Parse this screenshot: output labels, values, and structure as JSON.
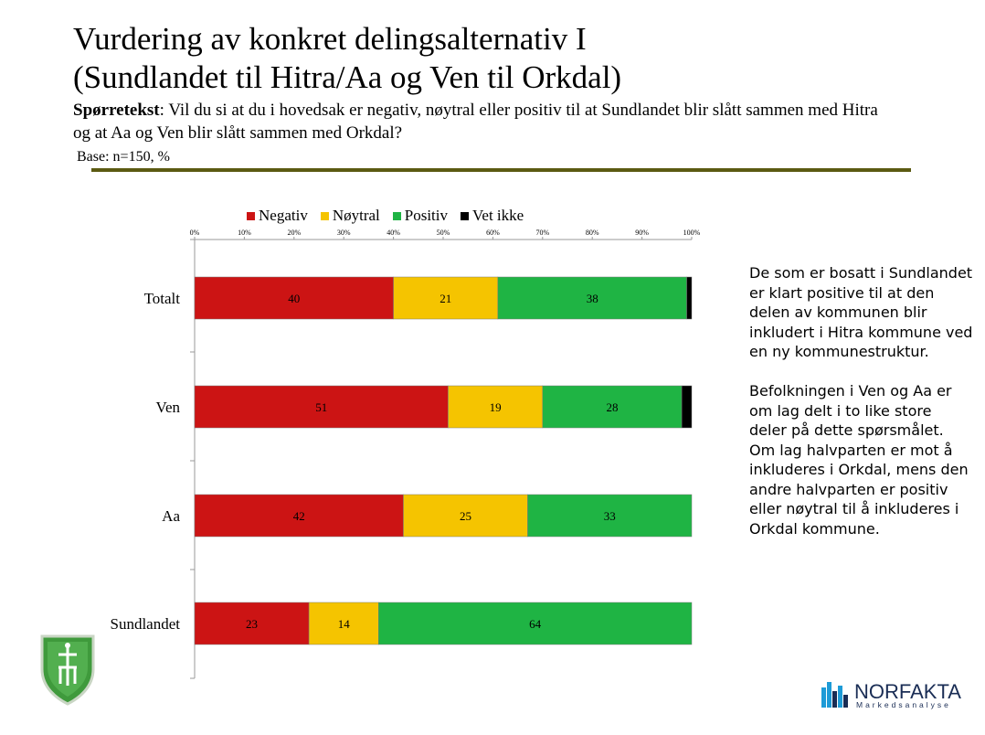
{
  "slide": {
    "title_line1": "Vurdering av konkret delingsalternativ I",
    "title_line2": "(Sundlandet til Hitra/Aa og Ven til Orkdal)",
    "question_label": "Spørretekst",
    "question_text": ": Vil du si at du i hovedsak er negativ, nøytral eller positiv til at Sundlandet blir slått sammen med Hitra og at Aa og Ven blir slått sammen med Orkdal?",
    "base": "Base: n=150, %",
    "comment": "De som er bosatt i Sundlandet er klart positive til at den delen av kommunen blir inkludert i Hitra kommune ved en ny kommunestruktur.\n\nBefolkningen i Ven og Aa er om lag delt i to like store deler på dette spørsmålet.  Om lag halvparten er mot å inkluderes i Orkdal, mens den andre halvparten er positiv eller nøytral til å inkluderes i Orkdal kommune.",
    "brand": {
      "name": "NORFAKTA",
      "subtitle": "Markedsanalyse"
    }
  },
  "chart_data": {
    "type": "bar",
    "orientation": "horizontal",
    "stacked": true,
    "percent": true,
    "categories": [
      "Totalt",
      "Ven",
      "Aa",
      "Sundlandet"
    ],
    "series": [
      {
        "name": "Negativ",
        "color": "#cc1414",
        "values": [
          40,
          51,
          42,
          23
        ]
      },
      {
        "name": "Nøytral",
        "color": "#f5c400",
        "values": [
          21,
          19,
          25,
          14
        ]
      },
      {
        "name": "Positiv",
        "color": "#1fb444",
        "values": [
          38,
          28,
          33,
          64
        ]
      },
      {
        "name": "Vet ikke",
        "color": "#000000",
        "values": [
          1,
          2,
          0,
          0
        ]
      }
    ],
    "data_labels": [
      [
        "40",
        "21",
        "38",
        ""
      ],
      [
        "51",
        "19",
        "28",
        ""
      ],
      [
        "42",
        "25",
        "33",
        ""
      ],
      [
        "23",
        "14",
        "64",
        ""
      ]
    ],
    "xlim": [
      0,
      100
    ],
    "xticks": [
      "0%",
      "10%",
      "20%",
      "30%",
      "40%",
      "50%",
      "60%",
      "70%",
      "80%",
      "90%",
      "100%"
    ],
    "legend_position": "top",
    "grid": false
  }
}
